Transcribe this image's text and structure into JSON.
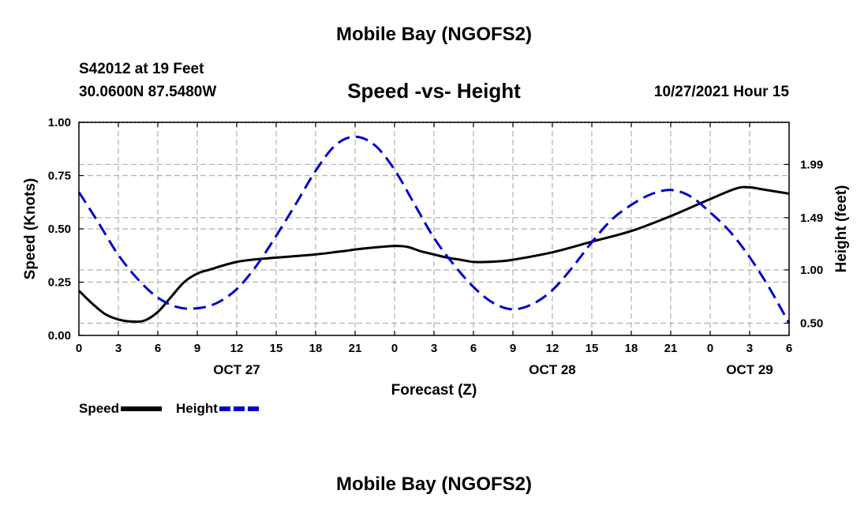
{
  "header": {
    "title": "Mobile Bay (NGOFS2)",
    "station": "S42012 at 19 Feet",
    "coords": "30.0600N  87.5480W",
    "subtitle": "Speed -vs- Height",
    "run_time": "10/27/2021 Hour 15"
  },
  "footer": {
    "title": "Mobile Bay (NGOFS2)"
  },
  "legend": {
    "speed_label": "Speed",
    "height_label": "Height"
  },
  "colors": {
    "speed": "#000000",
    "height": "#0000cc",
    "grid": "#b0b0b0"
  },
  "chart_data": {
    "type": "line",
    "title": "Speed -vs- Height",
    "xlabel": "Forecast (Z)",
    "ylabel": "Speed (Knots)",
    "y2label": "Height (feet)",
    "xlim": [
      0,
      54
    ],
    "ylim": [
      0,
      1
    ],
    "y2_tick_values": [
      0.5,
      1.0,
      1.49,
      1.99
    ],
    "y2_tick_labels": [
      "0.50",
      "1.00",
      "1.49",
      "1.99"
    ],
    "y2_tick_positions_speed_units": [
      0.06,
      0.305,
      0.55,
      0.805
    ],
    "x_ticks": [
      0,
      3,
      6,
      9,
      12,
      15,
      18,
      21,
      24,
      27,
      30,
      33,
      36,
      39,
      42,
      45,
      48,
      51,
      54
    ],
    "x_tick_labels": [
      "0",
      "3",
      "6",
      "9",
      "12",
      "15",
      "18",
      "21",
      "0",
      "3",
      "6",
      "9",
      "12",
      "15",
      "18",
      "21",
      "0",
      "3",
      "6"
    ],
    "y_ticks": [
      0,
      0.25,
      0.5,
      0.75,
      1.0
    ],
    "y_tick_labels": [
      "0.00",
      "0.25",
      "0.50",
      "0.75",
      "1.00"
    ],
    "date_labels": [
      {
        "label": "OCT 27",
        "x": 12
      },
      {
        "label": "OCT 28",
        "x": 36
      },
      {
        "label": "OCT 29",
        "x": 51
      }
    ],
    "grid": true,
    "legend_position": "bottom-left",
    "series": [
      {
        "name": "Speed",
        "axis": "left",
        "style": "solid",
        "x": [
          0,
          1,
          2,
          3,
          4,
          5,
          6,
          7,
          8,
          9,
          10,
          12,
          14,
          16,
          18,
          20,
          22,
          24,
          25,
          26,
          27,
          28,
          29,
          30,
          31,
          32,
          33,
          36,
          39,
          42,
          45,
          48,
          50,
          51,
          52,
          54
        ],
        "values": [
          0.21,
          0.15,
          0.1,
          0.075,
          0.065,
          0.07,
          0.11,
          0.18,
          0.25,
          0.29,
          0.31,
          0.345,
          0.36,
          0.37,
          0.38,
          0.395,
          0.41,
          0.42,
          0.415,
          0.395,
          0.38,
          0.365,
          0.355,
          0.345,
          0.345,
          0.348,
          0.355,
          0.39,
          0.44,
          0.49,
          0.56,
          0.64,
          0.69,
          0.695,
          0.685,
          0.665
        ]
      },
      {
        "name": "Height",
        "axis": "right",
        "style": "dashed",
        "x": [
          0,
          1.5,
          3,
          4.5,
          6,
          7.5,
          9,
          10.5,
          12,
          13.5,
          15,
          16.5,
          18,
          19.5,
          21,
          22.5,
          24,
          25.5,
          27,
          28.5,
          30,
          31.5,
          33,
          34.5,
          36,
          37.5,
          39,
          40.5,
          42,
          43.5,
          45,
          46.5,
          48,
          49.5,
          51,
          52.5,
          54
        ],
        "values": [
          1.73,
          1.44,
          1.14,
          0.91,
          0.74,
          0.65,
          0.64,
          0.69,
          0.82,
          1.04,
          1.32,
          1.62,
          1.93,
          2.17,
          2.25,
          2.17,
          1.94,
          1.62,
          1.3,
          1.05,
          0.84,
          0.69,
          0.63,
          0.68,
          0.81,
          1.02,
          1.26,
          1.47,
          1.61,
          1.71,
          1.75,
          1.69,
          1.54,
          1.36,
          1.12,
          0.83,
          0.5
        ]
      }
    ]
  }
}
